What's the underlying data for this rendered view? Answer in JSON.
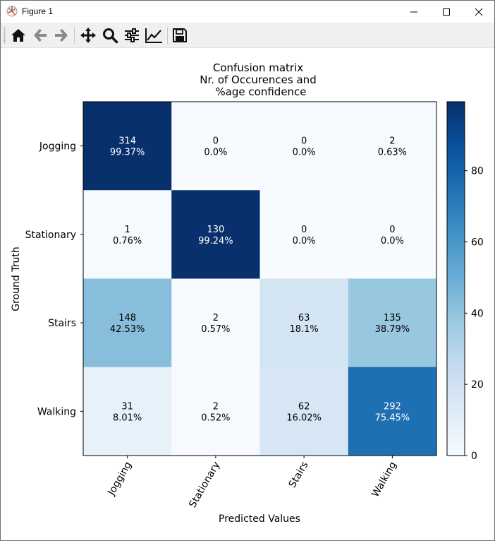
{
  "window": {
    "title": "Figure 1"
  },
  "toolbar": {
    "buttons": [
      {
        "name": "home-button",
        "icon": "home-icon"
      },
      {
        "name": "back-button",
        "icon": "arrow-left-icon"
      },
      {
        "name": "forward-button",
        "icon": "arrow-right-icon"
      },
      {
        "name": "pan-button",
        "icon": "move-icon"
      },
      {
        "name": "zoom-button",
        "icon": "magnifier-icon"
      },
      {
        "name": "configure-subplots-button",
        "icon": "sliders-icon"
      },
      {
        "name": "edit-axis-button",
        "icon": "line-chart-icon"
      },
      {
        "name": "save-button",
        "icon": "floppy-disk-icon"
      }
    ]
  },
  "chart_data": {
    "type": "heatmap",
    "title_lines": [
      "Confusion matrix",
      "Nr. of Occurences and",
      "%age confidence"
    ],
    "xlabel": "Predicted Values",
    "ylabel": "Ground Truth",
    "x_categories": [
      "Jogging",
      "Stationary",
      "Stairs",
      "Walking"
    ],
    "y_categories": [
      "Jogging",
      "Stationary",
      "Stairs",
      "Walking"
    ],
    "counts": [
      [
        314,
        0,
        0,
        2
      ],
      [
        1,
        130,
        0,
        0
      ],
      [
        148,
        2,
        63,
        135
      ],
      [
        31,
        2,
        62,
        292
      ]
    ],
    "percent_labels": [
      [
        "99.37%",
        "0.0%",
        "0.0%",
        "0.63%"
      ],
      [
        "0.76%",
        "99.24%",
        "0.0%",
        "0.0%"
      ],
      [
        "42.53%",
        "0.57%",
        "18.1%",
        "38.79%"
      ],
      [
        "8.01%",
        "0.52%",
        "16.02%",
        "75.45%"
      ]
    ],
    "values": [
      [
        99.37,
        0.0,
        0.0,
        0.63
      ],
      [
        0.76,
        99.24,
        0.0,
        0.0
      ],
      [
        42.53,
        0.57,
        18.1,
        38.79
      ],
      [
        8.01,
        0.52,
        16.02,
        75.45
      ]
    ],
    "colormap": "Blues",
    "colorbar": {
      "min": 0,
      "max": 99.37,
      "ticks": [
        0,
        20,
        40,
        60,
        80
      ]
    },
    "grid": false
  }
}
